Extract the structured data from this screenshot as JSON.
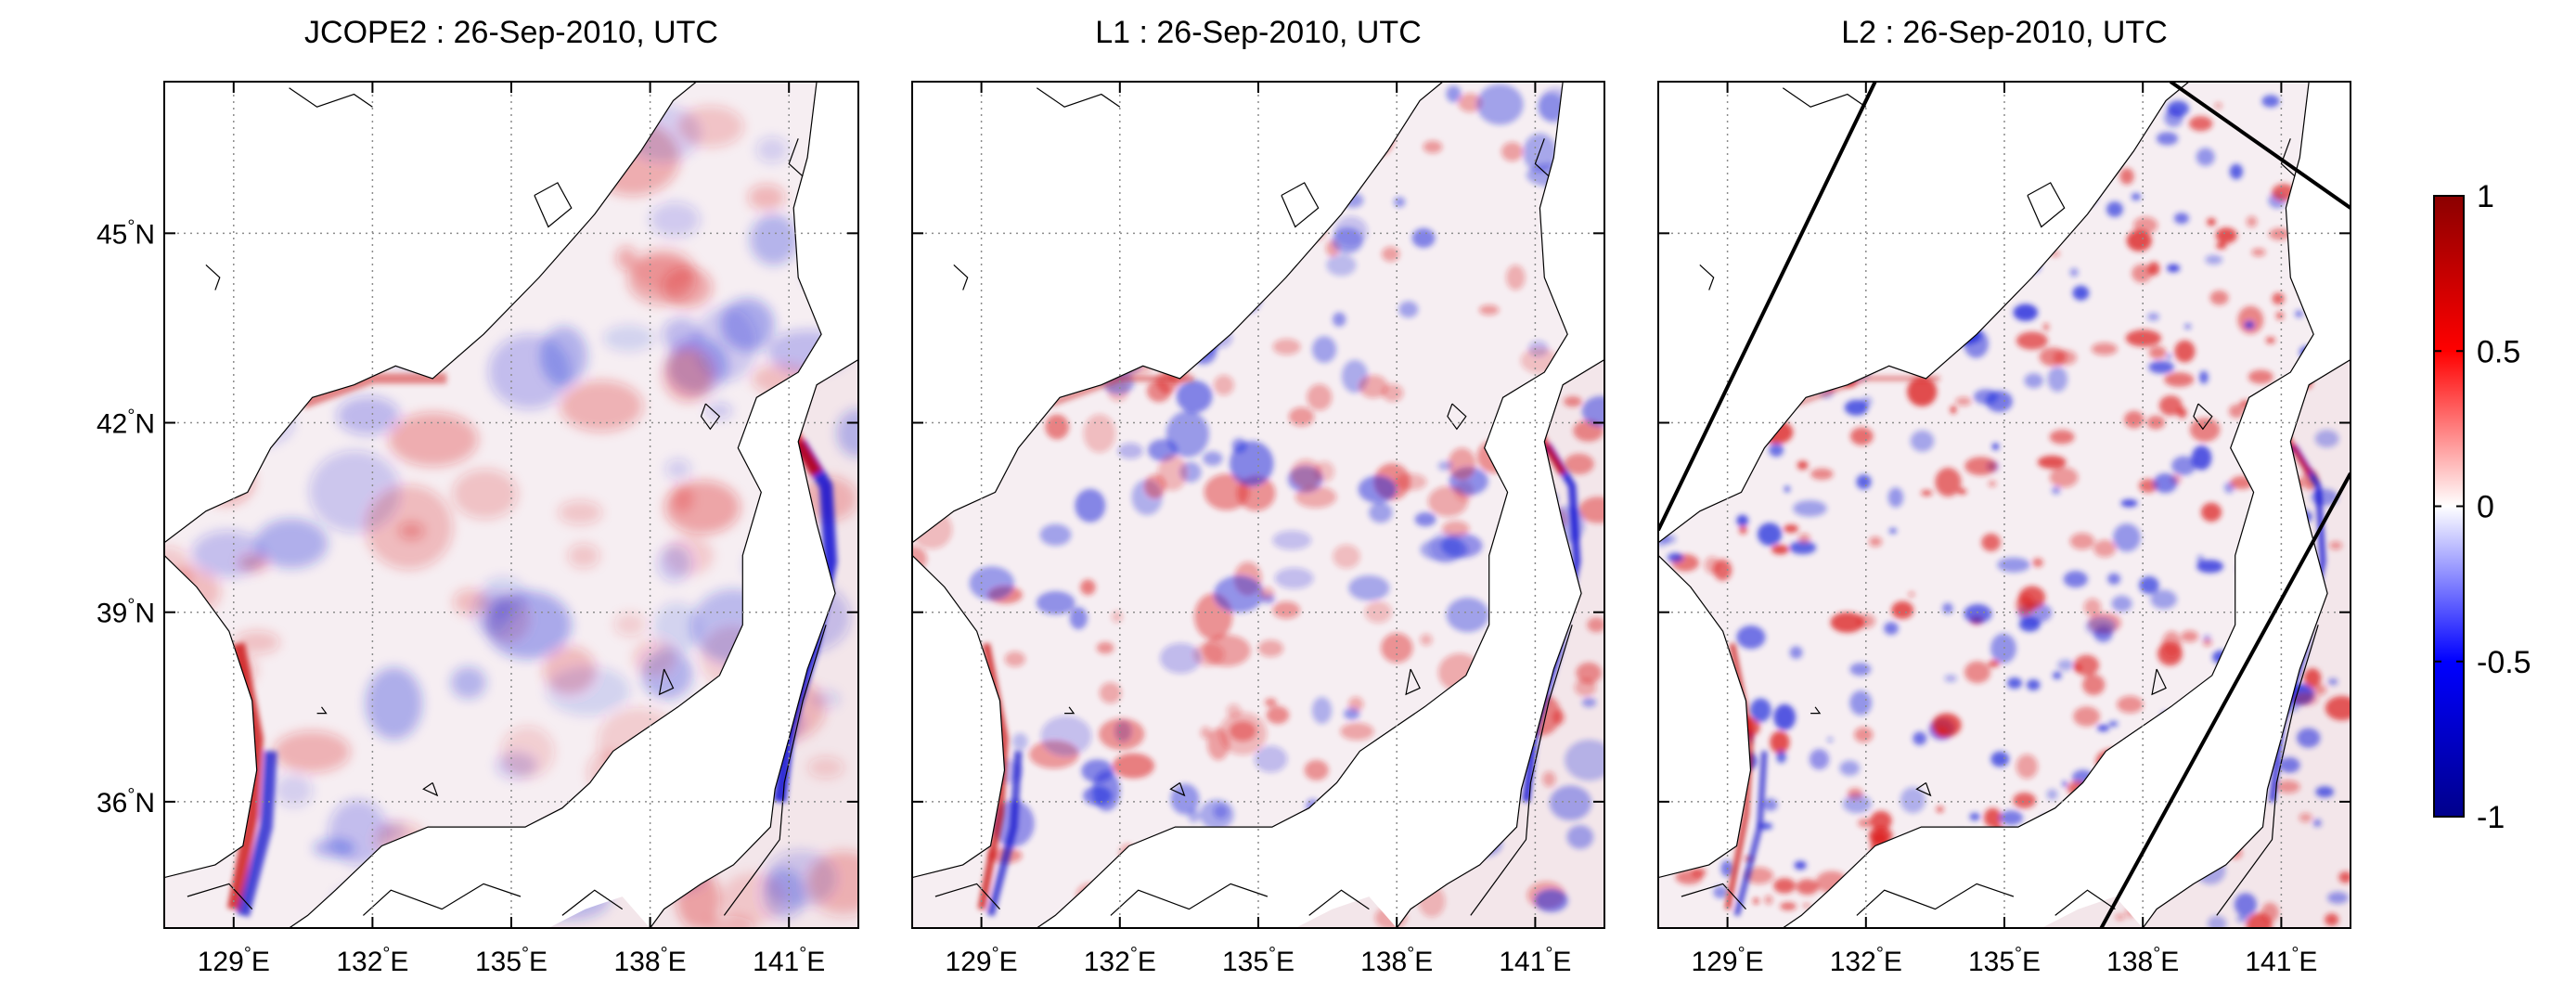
{
  "chart_data": [
    {
      "type": "heatmap",
      "title": "JCOPE2  : 26-Sep-2010, UTC",
      "xlim": [
        127.5,
        142.5
      ],
      "ylim": [
        34.0,
        47.4
      ],
      "xticks": [
        129,
        132,
        135,
        138,
        141
      ],
      "yticks": [
        36,
        39,
        42,
        45
      ],
      "xtick_labels": [
        "129°E",
        "132°E",
        "135°E",
        "138°E",
        "141°E"
      ],
      "ytick_labels": [
        "36°N",
        "39°N",
        "42°N",
        "45°N"
      ],
      "grid": true,
      "grid_style": "dotted",
      "diagonal_lines": []
    },
    {
      "type": "heatmap",
      "title": "L1  : 26-Sep-2010, UTC",
      "xlim": [
        127.5,
        142.5
      ],
      "ylim": [
        34.0,
        47.4
      ],
      "xticks": [
        129,
        132,
        135,
        138,
        141
      ],
      "yticks": [
        36,
        39,
        42,
        45
      ],
      "xtick_labels": [
        "129°E",
        "132°E",
        "135°E",
        "138°E",
        "141°E"
      ],
      "ytick_labels": [
        "36°N",
        "39°N",
        "42°N",
        "45°N"
      ],
      "grid": true,
      "grid_style": "dotted",
      "diagonal_lines": []
    },
    {
      "type": "heatmap",
      "title": "L2  : 26-Sep-2010, UTC",
      "xlim": [
        127.5,
        142.5
      ],
      "ylim": [
        34.0,
        47.4
      ],
      "xticks": [
        129,
        132,
        135,
        138,
        141
      ],
      "yticks": [
        36,
        39,
        42,
        45
      ],
      "xtick_labels": [
        "129°E",
        "132°E",
        "135°E",
        "138°E",
        "141°E"
      ],
      "ytick_labels": [
        "36°N",
        "39°N",
        "42°N",
        "45°N"
      ],
      "grid": true,
      "grid_style": "dotted",
      "diagonal_lines": [
        [
          [
            127.5,
            40.3
          ],
          [
            132.2,
            47.4
          ]
        ],
        [
          [
            137.1,
            34.0
          ],
          [
            142.5,
            41.2
          ]
        ],
        [
          [
            138.6,
            47.4
          ],
          [
            142.5,
            45.4
          ]
        ]
      ]
    }
  ],
  "colorbar": {
    "range": [
      -1,
      1
    ],
    "ticks": [
      1,
      0.5,
      0,
      -0.5,
      -1
    ],
    "tick_labels": [
      "1",
      "0.5",
      "0",
      "-0.5",
      "-1"
    ],
    "colors": [
      "#00008b",
      "#0000ff",
      "#ffffff",
      "#ff0000",
      "#8b0000"
    ]
  }
}
